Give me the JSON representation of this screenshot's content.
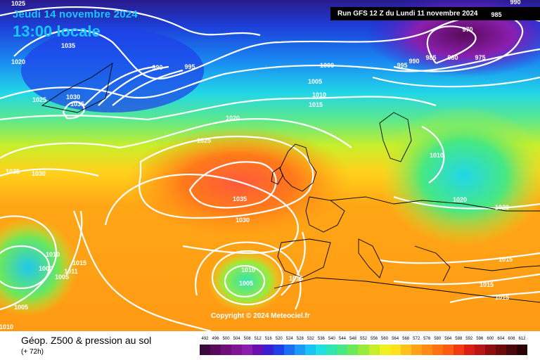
{
  "header": {
    "date": "Jeudi 14 novembre 2024",
    "time": "13:00 locale",
    "run": "Run GFS 12 Z du Lundi 11 novembre 2024"
  },
  "map": {
    "copyright": "Copyright © 2024 Meteociel.fr",
    "isobar_labels": [
      "1025",
      "1035",
      "1020",
      "1030",
      "1035",
      "1025",
      "990",
      "995",
      "1000",
      "995",
      "990",
      "985",
      "980",
      "975",
      "970",
      "985",
      "990",
      "1005",
      "1010",
      "1015",
      "1020",
      "1025",
      "1030",
      "1035",
      "1035",
      "1030",
      "1010",
      "1000",
      "1005",
      "1011",
      "1015",
      "1010",
      "1005",
      "1015",
      "1005",
      "1010",
      "1010",
      "1020",
      "1020",
      "1015",
      "1015",
      "1015"
    ]
  },
  "footer": {
    "title": "Géop. Z500 & pression au sol",
    "subtitle": "(+ 72h)",
    "scale_labels": [
      "492",
      "496",
      "500",
      "504",
      "508",
      "512",
      "516",
      "520",
      "524",
      "528",
      "532",
      "536",
      "540",
      "544",
      "548",
      "552",
      "556",
      "560",
      "564",
      "568",
      "572",
      "576",
      "580",
      "584",
      "588",
      "592",
      "596",
      "600",
      "604",
      "608",
      "612"
    ],
    "scale_colors": [
      "#3a0a3a",
      "#5a0a5a",
      "#6e0e78",
      "#7f1590",
      "#8a1faf",
      "#6a0fb0",
      "#3a1fd0",
      "#1e3fe8",
      "#1a6ef5",
      "#1b9af8",
      "#18c4f6",
      "#20e0e0",
      "#30e6b0",
      "#48e882",
      "#6ce85a",
      "#9aea3c",
      "#c8ee2a",
      "#eef020",
      "#ffe11e",
      "#ffc21a",
      "#ffa216",
      "#ff8a14",
      "#ff7212",
      "#ff5a10",
      "#f23a10",
      "#d81e12",
      "#b81414",
      "#8e0e10",
      "#6a0a0c",
      "#4a0608",
      "#2a0204"
    ]
  }
}
